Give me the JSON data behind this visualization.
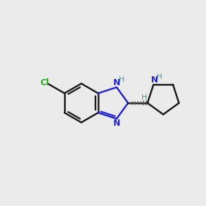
{
  "background_color": "#ebebeb",
  "bond_color": "#1a1a1a",
  "bond_width": 1.8,
  "N_color": "#2222cc",
  "NH_color": "#4a9090",
  "Cl_color": "#22aa22",
  "figsize": [
    3.0,
    3.0
  ],
  "dpi": 100,
  "xlim": [
    -5.0,
    5.5
  ],
  "ylim": [
    -4.0,
    4.0
  ]
}
